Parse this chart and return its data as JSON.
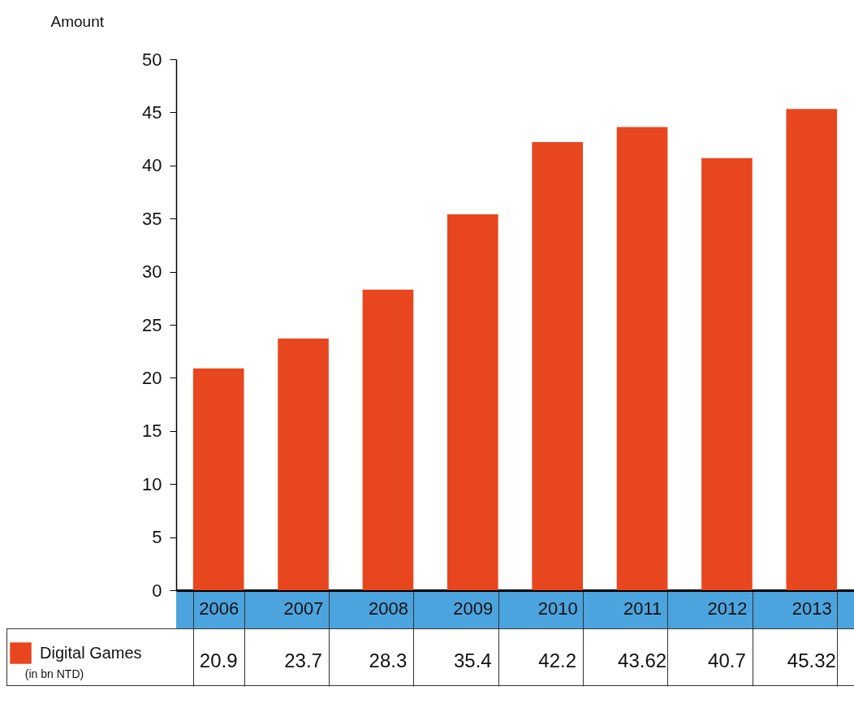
{
  "chart_data": {
    "type": "bar",
    "ylabel": "Amount",
    "categories": [
      "2006",
      "2007",
      "2008",
      "2009",
      "2010",
      "2011",
      "2012",
      "2013"
    ],
    "series": [
      {
        "name": "Digital Games",
        "color": "#e8461e",
        "values": [
          20.9,
          23.7,
          28.3,
          35.4,
          42.2,
          43.62,
          40.7,
          45.32
        ]
      }
    ],
    "ylim": [
      0,
      50
    ],
    "yticks": [
      0,
      5,
      10,
      15,
      20,
      25,
      30,
      35,
      40,
      45,
      50
    ],
    "grid": false,
    "legend": "bottom left",
    "data_labels": true,
    "annotations": [
      "(in bn NTD)"
    ]
  }
}
